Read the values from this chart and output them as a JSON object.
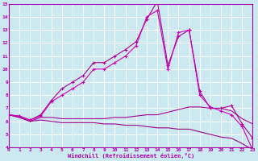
{
  "xlabel": "Windchill (Refroidissement éolien,°C)",
  "ylabel": "",
  "bg_color": "#cce8f0",
  "grid_color": "#ffffff",
  "line_color": "#cc00aa",
  "xlim": [
    0,
    23
  ],
  "ylim": [
    4,
    15
  ],
  "xticks": [
    0,
    1,
    2,
    3,
    4,
    5,
    6,
    7,
    8,
    9,
    10,
    11,
    12,
    13,
    14,
    15,
    16,
    17,
    18,
    19,
    20,
    21,
    22,
    23
  ],
  "yticks": [
    4,
    5,
    6,
    7,
    8,
    9,
    10,
    11,
    12,
    13,
    14,
    15
  ],
  "series": [
    {
      "x": [
        0,
        1,
        2,
        3,
        4,
        5,
        6,
        7,
        8,
        9,
        10,
        11,
        12,
        13,
        14,
        15,
        16,
        17,
        18,
        19,
        20,
        21,
        22,
        23
      ],
      "y": [
        6.5,
        6.4,
        6.1,
        6.5,
        7.6,
        8.5,
        9.0,
        9.5,
        10.5,
        10.5,
        11.0,
        11.5,
        12.1,
        13.8,
        15.2,
        10.3,
        12.5,
        13.0,
        8.3,
        7.0,
        7.0,
        7.2,
        5.8,
        4.7
      ],
      "marker": "+"
    },
    {
      "x": [
        0,
        1,
        2,
        3,
        4,
        5,
        6,
        7,
        8,
        9,
        10,
        11,
        12,
        13,
        14,
        15,
        16,
        17,
        18,
        19,
        20,
        21,
        22,
        23
      ],
      "y": [
        6.5,
        6.4,
        6.1,
        6.4,
        7.5,
        8.0,
        8.5,
        9.0,
        10.0,
        10.0,
        10.5,
        11.0,
        11.8,
        14.0,
        14.5,
        10.0,
        12.8,
        13.0,
        8.0,
        7.1,
        6.8,
        6.5,
        5.6,
        3.8
      ],
      "marker": "+"
    },
    {
      "x": [
        0,
        1,
        2,
        3,
        4,
        5,
        6,
        7,
        8,
        9,
        10,
        11,
        12,
        13,
        14,
        15,
        16,
        17,
        18,
        19,
        20,
        21,
        22,
        23
      ],
      "y": [
        6.5,
        6.3,
        6.0,
        6.3,
        6.3,
        6.2,
        6.2,
        6.2,
        6.2,
        6.2,
        6.3,
        6.3,
        6.4,
        6.5,
        6.5,
        6.7,
        6.9,
        7.1,
        7.1,
        7.0,
        7.0,
        6.8,
        6.2,
        5.8
      ],
      "marker": null
    },
    {
      "x": [
        0,
        1,
        2,
        3,
        4,
        5,
        6,
        7,
        8,
        9,
        10,
        11,
        12,
        13,
        14,
        15,
        16,
        17,
        18,
        19,
        20,
        21,
        22,
        23
      ],
      "y": [
        6.5,
        6.3,
        6.0,
        6.1,
        6.0,
        5.9,
        5.9,
        5.9,
        5.9,
        5.8,
        5.8,
        5.7,
        5.7,
        5.6,
        5.5,
        5.5,
        5.4,
        5.4,
        5.2,
        5.0,
        4.8,
        4.7,
        4.3,
        3.8
      ],
      "marker": null
    }
  ],
  "series_colors": [
    "#aa0099",
    "#cc00bb",
    "#aa0099",
    "#990088"
  ]
}
